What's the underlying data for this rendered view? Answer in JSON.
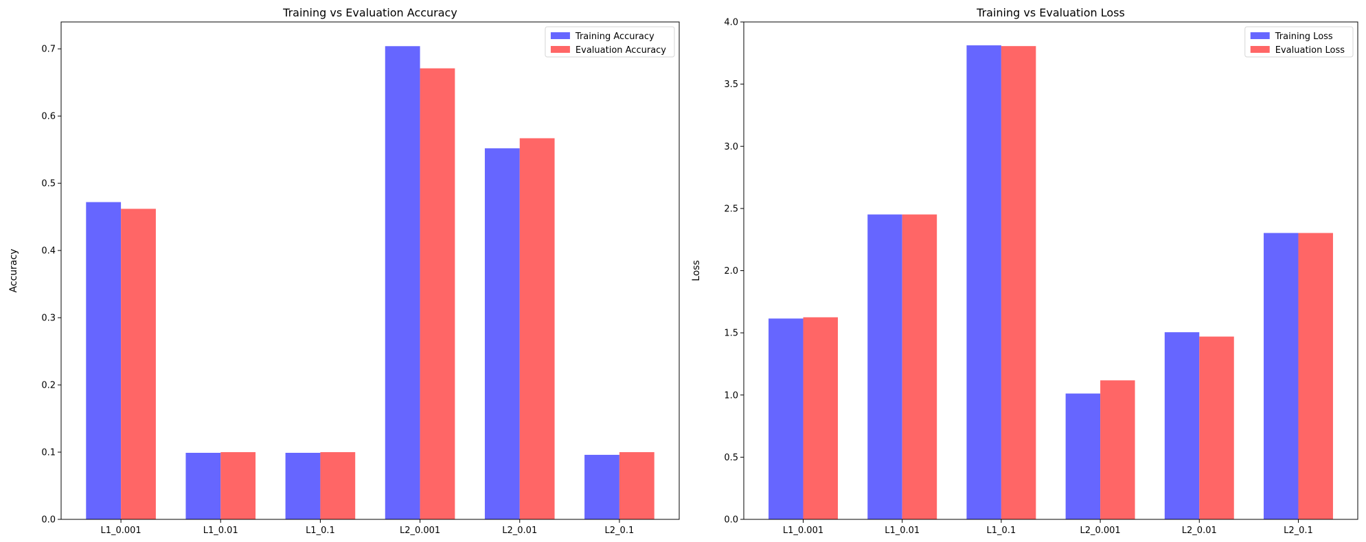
{
  "chart_data": [
    {
      "type": "bar",
      "title": "Training vs Evaluation Accuracy",
      "xlabel": "",
      "ylabel": "Accuracy",
      "categories": [
        "L1_0.001",
        "L1_0.01",
        "L1_0.1",
        "L2_0.001",
        "L2_0.01",
        "L2_0.1"
      ],
      "series": [
        {
          "name": "Training Accuracy",
          "color": "#6666ff",
          "values": [
            0.472,
            0.099,
            0.099,
            0.704,
            0.552,
            0.096
          ]
        },
        {
          "name": "Evaluation Accuracy",
          "color": "#ff6666",
          "values": [
            0.462,
            0.1,
            0.1,
            0.671,
            0.567,
            0.1
          ]
        }
      ],
      "ylim": [
        0,
        0.74
      ],
      "yticks": [
        "0.0",
        "0.1",
        "0.2",
        "0.3",
        "0.4",
        "0.5",
        "0.6",
        "0.7"
      ],
      "grid": false,
      "legend_position": "top-right"
    },
    {
      "type": "bar",
      "title": "Training vs Evaluation Loss",
      "xlabel": "",
      "ylabel": "Loss",
      "categories": [
        "L1_0.001",
        "L1_0.01",
        "L1_0.1",
        "L2_0.001",
        "L2_0.01",
        "L2_0.1"
      ],
      "series": [
        {
          "name": "Training Loss",
          "color": "#6666ff",
          "values": [
            1.615,
            2.452,
            3.812,
            1.012,
            1.505,
            2.303
          ]
        },
        {
          "name": "Evaluation Loss",
          "color": "#ff6666",
          "values": [
            1.625,
            2.452,
            3.806,
            1.118,
            1.47,
            2.303
          ]
        }
      ],
      "ylim": [
        0,
        4.0
      ],
      "yticks": [
        "0.0",
        "0.5",
        "1.0",
        "1.5",
        "2.0",
        "2.5",
        "3.0",
        "3.5",
        "4.0"
      ],
      "grid": false,
      "legend_position": "top-right"
    }
  ]
}
